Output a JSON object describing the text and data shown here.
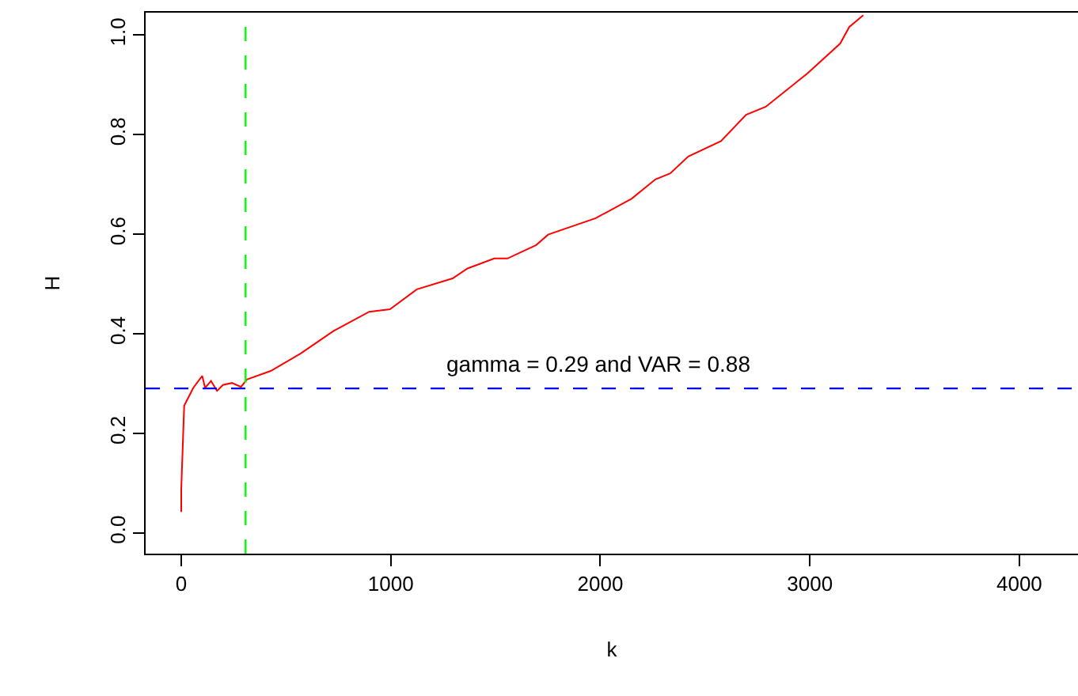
{
  "chart_data": {
    "type": "line",
    "xlabel": "k",
    "ylabel": "H",
    "x": [
      0,
      0,
      6,
      14,
      28,
      43,
      57,
      100,
      114,
      142,
      171,
      199,
      242,
      285,
      313,
      427,
      569,
      726,
      897,
      996,
      1124,
      1295,
      1366,
      1494,
      1557,
      1694,
      1751,
      1978,
      2149,
      2263,
      2334,
      2420,
      2576,
      2696,
      2790,
      2989,
      3145,
      3188,
      3255
    ],
    "series": [
      {
        "color": "#ff0000",
        "values": [
          0.042,
          0.087,
          0.16,
          0.255,
          0.267,
          0.279,
          0.291,
          0.315,
          0.291,
          0.305,
          0.285,
          0.297,
          0.301,
          0.293,
          0.308,
          0.325,
          0.36,
          0.405,
          0.444,
          0.449,
          0.489,
          0.511,
          0.531,
          0.551,
          0.551,
          0.578,
          0.599,
          0.632,
          0.671,
          0.71,
          0.722,
          0.756,
          0.787,
          0.84,
          0.856,
          0.923,
          0.983,
          1.016,
          1.04
        ]
      }
    ],
    "xlim": [
      -170,
      4280
    ],
    "ylim": [
      -0.042,
      1.045
    ],
    "xticks": [
      0,
      1000,
      2000,
      3000,
      4000
    ],
    "yticks": [
      {
        "value": 0,
        "label": "0.0"
      },
      {
        "value": 0.2,
        "label": "0.2"
      },
      {
        "value": 0.4,
        "label": "0.4"
      },
      {
        "value": 0.6,
        "label": "0.6"
      },
      {
        "value": 0.8,
        "label": "0.8"
      },
      {
        "value": 1,
        "label": "1.0"
      }
    ],
    "ref_lines": [
      {
        "axis": "y",
        "value": 0.29,
        "color": "#0000ff",
        "line_style": "dashed"
      },
      {
        "axis": "x",
        "value": 307,
        "color": "#00ff00",
        "line_style": "dashed"
      }
    ],
    "annotations": [
      "gamma = 0.29 and VAR = 0.88"
    ],
    "grid": false,
    "legend": false,
    "marker": "none",
    "line_style": "solid"
  }
}
